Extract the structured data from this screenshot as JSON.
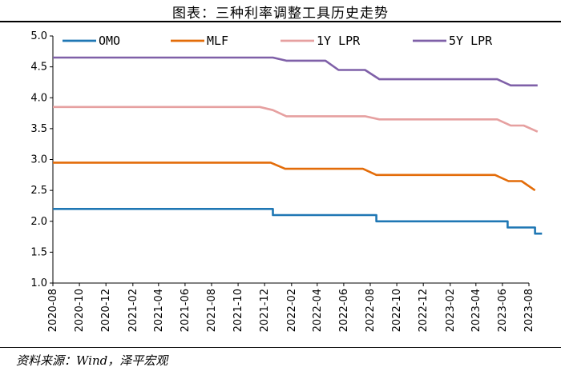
{
  "title": "图表：三种利率调整工具历史走势",
  "source": "资料来源：Wind，泽平宏观",
  "chart_data": {
    "type": "line",
    "title": "图表：三种利率调整工具历史走势",
    "xlabel": "",
    "ylabel": "",
    "ylim": [
      1.0,
      5.0
    ],
    "yticks": [
      "5.0",
      "4.5",
      "4.0",
      "3.5",
      "3.0",
      "2.5",
      "2.0",
      "1.5",
      "1.0"
    ],
    "x_range": [
      "2020-08",
      "2023-08"
    ],
    "x_ticks": [
      "2020-08",
      "2020-10",
      "2020-12",
      "2021-02",
      "2021-04",
      "2021-06",
      "2021-08",
      "2021-10",
      "2021-12",
      "2022-02",
      "2022-04",
      "2022-06",
      "2022-08",
      "2022-10",
      "2022-12",
      "2023-02",
      "2023-04",
      "2023-06",
      "2023-08"
    ],
    "grid": false,
    "legend": "top",
    "series": [
      {
        "name": "OMO",
        "color": "#1f77b4",
        "step": true,
        "points": [
          [
            "2020-08",
            2.2
          ],
          [
            "2021-12-20",
            2.1
          ],
          [
            "2022-08-15",
            2.0
          ],
          [
            "2023-06-13",
            1.9
          ],
          [
            "2023-08-15",
            1.8
          ],
          [
            "2023-08-31",
            1.8
          ]
        ]
      },
      {
        "name": "MLF",
        "color": "#e36c09",
        "step": false,
        "points": [
          [
            "2020-08",
            2.95
          ],
          [
            "2021-12-15",
            2.95
          ],
          [
            "2022-01-17",
            2.85
          ],
          [
            "2022-07-15",
            2.85
          ],
          [
            "2022-08-15",
            2.75
          ],
          [
            "2023-05-15",
            2.75
          ],
          [
            "2023-06-15",
            2.65
          ],
          [
            "2023-07-15",
            2.65
          ],
          [
            "2023-08-15",
            2.5
          ]
        ]
      },
      {
        "name": "1Y LPR",
        "color": "#e6a0a0",
        "step": false,
        "points": [
          [
            "2020-08",
            3.85
          ],
          [
            "2021-11-20",
            3.85
          ],
          [
            "2021-12-20",
            3.8
          ],
          [
            "2022-01-20",
            3.7
          ],
          [
            "2022-07-20",
            3.7
          ],
          [
            "2022-08-22",
            3.65
          ],
          [
            "2023-05-20",
            3.65
          ],
          [
            "2023-06-20",
            3.55
          ],
          [
            "2023-07-20",
            3.55
          ],
          [
            "2023-08-21",
            3.45
          ]
        ]
      },
      {
        "name": "5Y LPR",
        "color": "#7f60a8",
        "step": false,
        "points": [
          [
            "2020-08",
            4.65
          ],
          [
            "2021-12-20",
            4.65
          ],
          [
            "2022-01-20",
            4.6
          ],
          [
            "2022-04-20",
            4.6
          ],
          [
            "2022-05-20",
            4.45
          ],
          [
            "2022-07-20",
            4.45
          ],
          [
            "2022-08-22",
            4.3
          ],
          [
            "2023-05-20",
            4.3
          ],
          [
            "2023-06-20",
            4.2
          ],
          [
            "2023-08-21",
            4.2
          ]
        ]
      }
    ]
  }
}
